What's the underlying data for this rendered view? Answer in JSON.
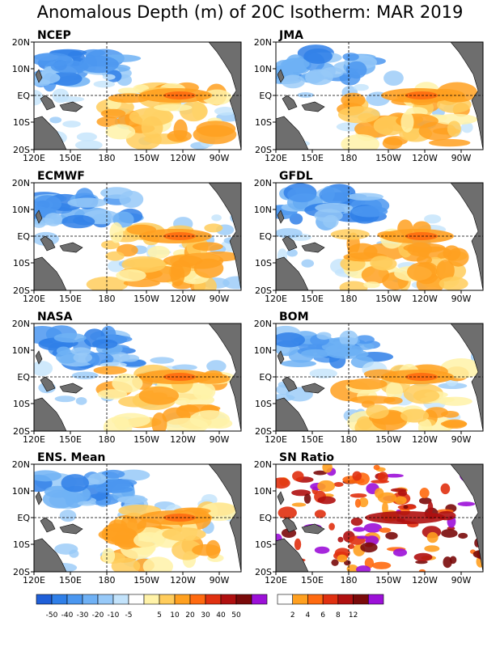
{
  "title": "Anomalous Depth (m) of 20C Isotherm: MAR 2019",
  "axes": {
    "x_ticks": [
      "120E",
      "150E",
      "180",
      "150W",
      "120W",
      "90W"
    ],
    "y_ticks": [
      "20N",
      "10N",
      "EQ",
      "10S",
      "20S"
    ]
  },
  "panels": [
    {
      "label": "NCEP"
    },
    {
      "label": "JMA"
    },
    {
      "label": "ECMWF"
    },
    {
      "label": "GFDL"
    },
    {
      "label": "NASA"
    },
    {
      "label": "BOM"
    },
    {
      "label": "ENS. Mean"
    },
    {
      "label": "SN Ratio"
    }
  ],
  "colorbar_anomaly": {
    "labels": [
      "-50",
      "-40",
      "-30",
      "-20",
      "-10",
      "-5",
      "5",
      "10",
      "20",
      "30",
      "40",
      "50"
    ],
    "colors": [
      "#1f5fd8",
      "#2f7fe8",
      "#4b97f0",
      "#6fb1f5",
      "#97c9f8",
      "#c3e3fb",
      "#ffffff",
      "#fff2a8",
      "#ffcc5c",
      "#ffa020",
      "#ff6a10",
      "#e03010",
      "#b01010",
      "#7a0a0a",
      "#9c10d8"
    ]
  },
  "colorbar_snr": {
    "labels": [
      "2",
      "4",
      "6",
      "8",
      "12"
    ],
    "colors": [
      "#ffffff",
      "#ffa020",
      "#ff6a10",
      "#e03010",
      "#b01010",
      "#7a0a0a",
      "#9c10d8"
    ]
  },
  "colors": {
    "land": "#6e6e6e",
    "grid": "#000000"
  }
}
